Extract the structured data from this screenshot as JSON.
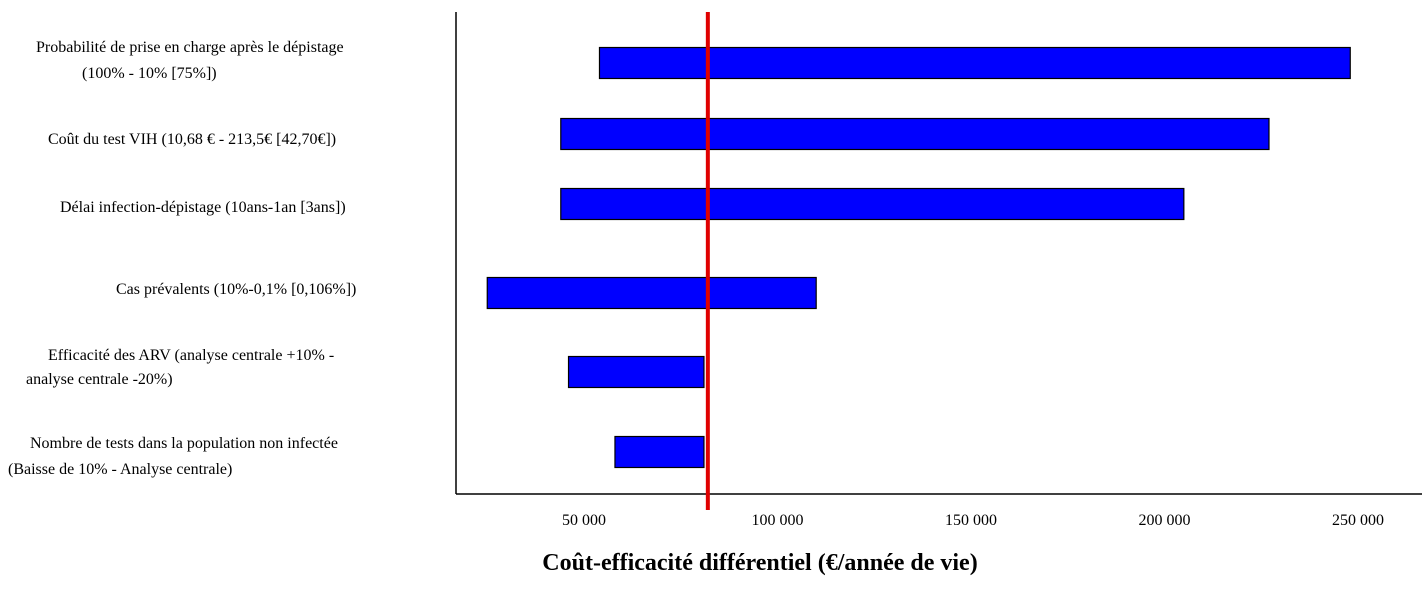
{
  "chart_data": {
    "type": "bar",
    "orientation": "horizontal",
    "title": "",
    "xlabel": "Coût-efficacité différentiel (€/année de vie)",
    "ylabel": "",
    "xlim": [
      20000,
      260000
    ],
    "x_ticks": [
      50000,
      100000,
      150000,
      200000,
      250000
    ],
    "x_tick_labels": [
      "50 000",
      "100 000",
      "150 000",
      "200 000",
      "250 000"
    ],
    "reference_line": 82000,
    "reference_line_color": "#e00000",
    "bar_color": "#0000ff",
    "grid": false,
    "categories": [
      {
        "line1": "Probabilité de prise en charge après le dépistage",
        "line2": "(100% - 10%  [75%])",
        "low": 54000,
        "high": 248000
      },
      {
        "line1": "Coût du test VIH (10,68 € - 213,5€ [42,70€])",
        "line2": "",
        "low": 44000,
        "high": 227000
      },
      {
        "line1": "Délai infection-dépistage (10ans-1an [3ans])",
        "line2": "",
        "low": 44000,
        "high": 205000
      },
      {
        "line1": "Cas prévalents (10%-0,1% [0,106%])",
        "line2": "",
        "low": 25000,
        "high": 110000
      },
      {
        "line1": "Efficacité des ARV (analyse centrale +10% -",
        "line2": "analyse centrale -20%)",
        "low": 46000,
        "high": 81000
      },
      {
        "line1": "Nombre de tests dans la population non infectée",
        "line2": "(Baisse de 10% - Analyse centrale)",
        "low": 58000,
        "high": 81000
      }
    ]
  }
}
